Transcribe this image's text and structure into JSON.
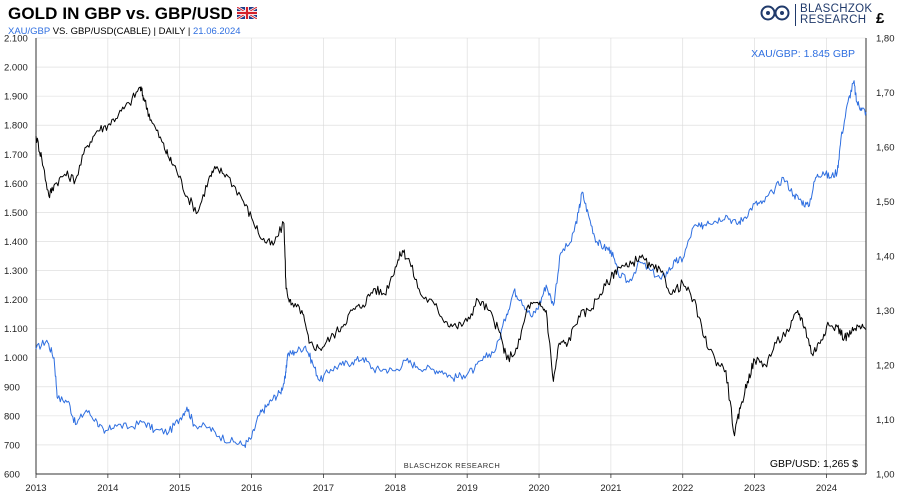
{
  "header": {
    "title": "GOLD IN GBP vs. GBP/USD",
    "subtitle_series1": "XAU/GBP",
    "subtitle_middle": " VS. GBP/USD(CABLE) | DAILY | ",
    "subtitle_date": "21.06.2024",
    "flag_icon": "uk-flag-icon"
  },
  "logo": {
    "line1": "BLASCHZOK",
    "line2": "RESEARCH",
    "icon": "blaschzok-logo-icon"
  },
  "currency_symbol": "£",
  "colors": {
    "gold_gbp": "#2f6fe0",
    "gbp_usd": "#000000",
    "grid": "#d9d9d9",
    "logo": "#203a6b"
  },
  "chart_data": {
    "type": "line",
    "title": "GOLD IN GBP vs. GBP/USD",
    "x_ticks": [
      "2013",
      "2014",
      "2015",
      "2016",
      "2017",
      "2018",
      "2019",
      "2020",
      "2021",
      "2022",
      "2023",
      "2024"
    ],
    "x_range": [
      2013.0,
      2024.55
    ],
    "left_axis": {
      "series": "XAU/GBP",
      "range": [
        600,
        2100
      ],
      "ticks": [
        "600",
        "700",
        "800",
        "900",
        "1.000",
        "1.100",
        "1.200",
        "1.300",
        "1.400",
        "1.500",
        "1.600",
        "1.700",
        "1.800",
        "1.900",
        "2.000",
        "2.100"
      ],
      "tick_values": [
        600,
        700,
        800,
        900,
        1000,
        1100,
        1200,
        1300,
        1400,
        1500,
        1600,
        1700,
        1800,
        1900,
        2000,
        2100
      ]
    },
    "right_axis": {
      "series": "GBP/USD",
      "range": [
        1.0,
        1.8
      ],
      "ticks": [
        "1,00",
        "1,10",
        "1,20",
        "1,30",
        "1,40",
        "1,50",
        "1,60",
        "1,70",
        "1,80"
      ],
      "tick_values": [
        1.0,
        1.1,
        1.2,
        1.3,
        1.4,
        1.5,
        1.6,
        1.7,
        1.8
      ]
    },
    "series": [
      {
        "name": "XAU/GBP",
        "axis": "left",
        "color": "#2f6fe0",
        "points": [
          [
            2013.0,
            1030
          ],
          [
            2013.15,
            1060
          ],
          [
            2013.25,
            1000
          ],
          [
            2013.3,
            860
          ],
          [
            2013.45,
            850
          ],
          [
            2013.55,
            770
          ],
          [
            2013.7,
            820
          ],
          [
            2013.85,
            780
          ],
          [
            2013.95,
            740
          ],
          [
            2014.1,
            770
          ],
          [
            2014.3,
            760
          ],
          [
            2014.5,
            780
          ],
          [
            2014.65,
            750
          ],
          [
            2014.85,
            745
          ],
          [
            2015.0,
            790
          ],
          [
            2015.1,
            830
          ],
          [
            2015.2,
            770
          ],
          [
            2015.4,
            760
          ],
          [
            2015.55,
            730
          ],
          [
            2015.75,
            710
          ],
          [
            2015.9,
            700
          ],
          [
            2016.0,
            725
          ],
          [
            2016.1,
            800
          ],
          [
            2016.2,
            830
          ],
          [
            2016.3,
            860
          ],
          [
            2016.4,
            880
          ],
          [
            2016.47,
            930
          ],
          [
            2016.5,
            1010
          ],
          [
            2016.6,
            1020
          ],
          [
            2016.75,
            1040
          ],
          [
            2016.85,
            980
          ],
          [
            2016.95,
            920
          ],
          [
            2017.1,
            960
          ],
          [
            2017.25,
            975
          ],
          [
            2017.4,
            985
          ],
          [
            2017.55,
            1000
          ],
          [
            2017.7,
            960
          ],
          [
            2017.85,
            960
          ],
          [
            2018.0,
            955
          ],
          [
            2018.15,
            990
          ],
          [
            2018.3,
            970
          ],
          [
            2018.5,
            960
          ],
          [
            2018.65,
            955
          ],
          [
            2018.8,
            930
          ],
          [
            2018.95,
            940
          ],
          [
            2019.1,
            960
          ],
          [
            2019.25,
            1000
          ],
          [
            2019.4,
            1030
          ],
          [
            2019.55,
            1150
          ],
          [
            2019.65,
            1230
          ],
          [
            2019.75,
            1200
          ],
          [
            2019.9,
            1140
          ],
          [
            2020.0,
            1180
          ],
          [
            2020.1,
            1250
          ],
          [
            2020.2,
            1180
          ],
          [
            2020.3,
            1360
          ],
          [
            2020.45,
            1400
          ],
          [
            2020.55,
            1500
          ],
          [
            2020.6,
            1570
          ],
          [
            2020.7,
            1480
          ],
          [
            2020.8,
            1400
          ],
          [
            2020.9,
            1380
          ],
          [
            2021.0,
            1370
          ],
          [
            2021.1,
            1290
          ],
          [
            2021.25,
            1260
          ],
          [
            2021.4,
            1330
          ],
          [
            2021.55,
            1300
          ],
          [
            2021.7,
            1270
          ],
          [
            2021.8,
            1300
          ],
          [
            2021.9,
            1330
          ],
          [
            2022.0,
            1340
          ],
          [
            2022.15,
            1450
          ],
          [
            2022.25,
            1450
          ],
          [
            2022.35,
            1470
          ],
          [
            2022.45,
            1470
          ],
          [
            2022.6,
            1490
          ],
          [
            2022.75,
            1460
          ],
          [
            2022.85,
            1480
          ],
          [
            2023.0,
            1530
          ],
          [
            2023.1,
            1530
          ],
          [
            2023.25,
            1570
          ],
          [
            2023.4,
            1620
          ],
          [
            2023.55,
            1560
          ],
          [
            2023.65,
            1540
          ],
          [
            2023.75,
            1520
          ],
          [
            2023.85,
            1620
          ],
          [
            2023.95,
            1640
          ],
          [
            2024.05,
            1620
          ],
          [
            2024.15,
            1640
          ],
          [
            2024.2,
            1750
          ],
          [
            2024.3,
            1880
          ],
          [
            2024.38,
            1950
          ],
          [
            2024.42,
            1880
          ],
          [
            2024.48,
            1860
          ],
          [
            2024.55,
            1845
          ]
        ]
      },
      {
        "name": "GBP/USD",
        "axis": "right",
        "color": "#000000",
        "points": [
          [
            2013.0,
            1.62
          ],
          [
            2013.08,
            1.58
          ],
          [
            2013.18,
            1.51
          ],
          [
            2013.25,
            1.53
          ],
          [
            2013.4,
            1.55
          ],
          [
            2013.55,
            1.54
          ],
          [
            2013.7,
            1.6
          ],
          [
            2013.85,
            1.63
          ],
          [
            2014.0,
            1.64
          ],
          [
            2014.15,
            1.66
          ],
          [
            2014.3,
            1.68
          ],
          [
            2014.45,
            1.71
          ],
          [
            2014.5,
            1.69
          ],
          [
            2014.6,
            1.65
          ],
          [
            2014.75,
            1.61
          ],
          [
            2014.85,
            1.58
          ],
          [
            2014.95,
            1.56
          ],
          [
            2015.1,
            1.51
          ],
          [
            2015.25,
            1.48
          ],
          [
            2015.4,
            1.54
          ],
          [
            2015.5,
            1.56
          ],
          [
            2015.65,
            1.55
          ],
          [
            2015.85,
            1.51
          ],
          [
            2016.0,
            1.47
          ],
          [
            2016.15,
            1.43
          ],
          [
            2016.3,
            1.42
          ],
          [
            2016.45,
            1.46
          ],
          [
            2016.48,
            1.34
          ],
          [
            2016.55,
            1.31
          ],
          [
            2016.7,
            1.3
          ],
          [
            2016.8,
            1.24
          ],
          [
            2016.95,
            1.23
          ],
          [
            2017.1,
            1.25
          ],
          [
            2017.25,
            1.27
          ],
          [
            2017.4,
            1.3
          ],
          [
            2017.55,
            1.31
          ],
          [
            2017.7,
            1.34
          ],
          [
            2017.85,
            1.33
          ],
          [
            2018.0,
            1.38
          ],
          [
            2018.1,
            1.41
          ],
          [
            2018.2,
            1.39
          ],
          [
            2018.35,
            1.33
          ],
          [
            2018.55,
            1.31
          ],
          [
            2018.7,
            1.28
          ],
          [
            2018.85,
            1.27
          ],
          [
            2019.0,
            1.28
          ],
          [
            2019.15,
            1.32
          ],
          [
            2019.3,
            1.3
          ],
          [
            2019.45,
            1.26
          ],
          [
            2019.55,
            1.21
          ],
          [
            2019.7,
            1.23
          ],
          [
            2019.85,
            1.31
          ],
          [
            2020.0,
            1.31
          ],
          [
            2020.1,
            1.3
          ],
          [
            2020.2,
            1.17
          ],
          [
            2020.28,
            1.24
          ],
          [
            2020.4,
            1.24
          ],
          [
            2020.55,
            1.29
          ],
          [
            2020.7,
            1.3
          ],
          [
            2020.85,
            1.33
          ],
          [
            2021.0,
            1.36
          ],
          [
            2021.1,
            1.38
          ],
          [
            2021.25,
            1.38
          ],
          [
            2021.4,
            1.4
          ],
          [
            2021.55,
            1.38
          ],
          [
            2021.7,
            1.37
          ],
          [
            2021.85,
            1.33
          ],
          [
            2022.0,
            1.35
          ],
          [
            2022.15,
            1.32
          ],
          [
            2022.3,
            1.25
          ],
          [
            2022.45,
            1.21
          ],
          [
            2022.6,
            1.19
          ],
          [
            2022.72,
            1.07
          ],
          [
            2022.8,
            1.12
          ],
          [
            2022.9,
            1.17
          ],
          [
            2023.0,
            1.21
          ],
          [
            2023.15,
            1.2
          ],
          [
            2023.3,
            1.24
          ],
          [
            2023.5,
            1.27
          ],
          [
            2023.6,
            1.3
          ],
          [
            2023.7,
            1.27
          ],
          [
            2023.8,
            1.22
          ],
          [
            2023.9,
            1.24
          ],
          [
            2024.0,
            1.27
          ],
          [
            2024.15,
            1.27
          ],
          [
            2024.25,
            1.25
          ],
          [
            2024.35,
            1.26
          ],
          [
            2024.45,
            1.27
          ],
          [
            2024.55,
            1.265
          ]
        ]
      }
    ],
    "annotations": {
      "gold_gbp_label": "XAU/GBP: 1.845 GBP",
      "gbp_usd_label": "GBP/USD: 1,265 $",
      "watermark": "BLASCHZOK  RESEARCH"
    },
    "grid": true
  }
}
